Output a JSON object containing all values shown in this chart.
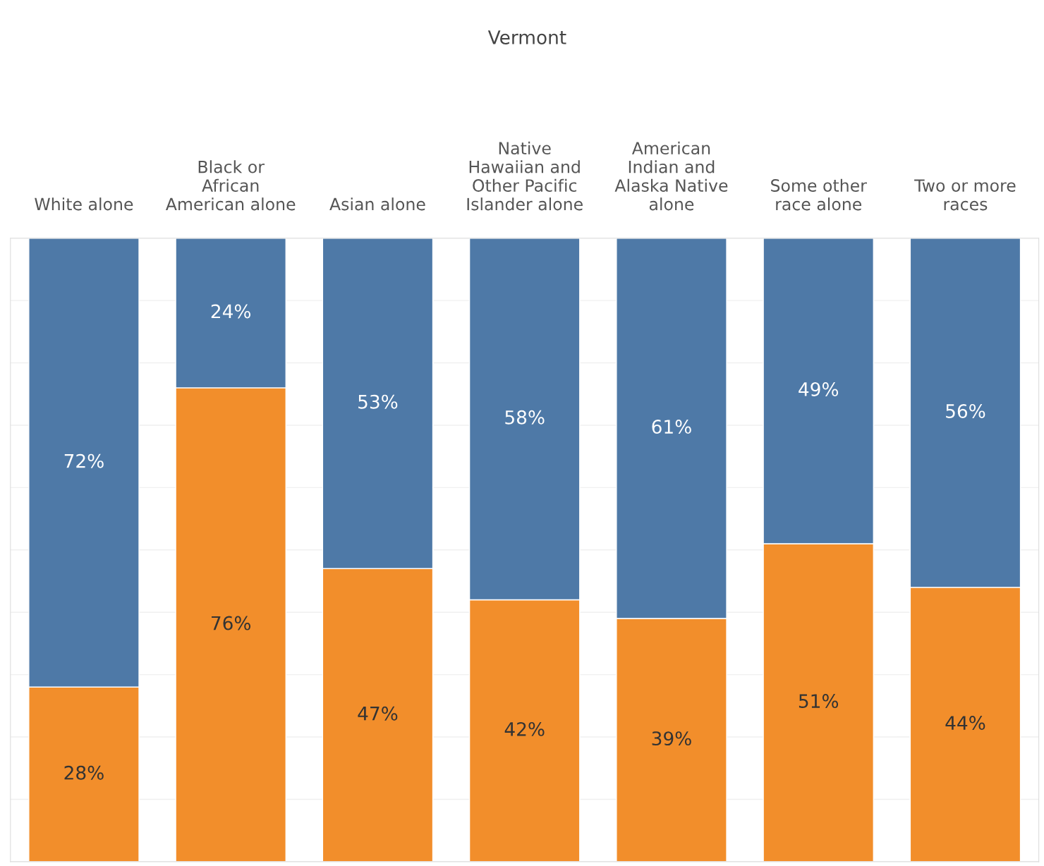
{
  "chart_data": {
    "type": "bar",
    "title": "Vermont",
    "stacked": true,
    "categories": [
      "White alone",
      "Black or African American alone",
      "Asian alone",
      "Native Hawaiian and Other Pacific Islander alone",
      "American Indian and Alaska Native alone",
      "Some other race alone",
      "Two or more races"
    ],
    "series": [
      {
        "color": "#f28e2b",
        "values": [
          28,
          76,
          47,
          42,
          39,
          51,
          44
        ],
        "value_labels": [
          "28%",
          "76%",
          "47%",
          "42%",
          "39%",
          "51%",
          "44%"
        ]
      },
      {
        "color": "#4e79a7",
        "values": [
          72,
          24,
          53,
          58,
          61,
          49,
          56
        ],
        "value_labels": [
          "72%",
          "24%",
          "53%",
          "58%",
          "61%",
          "49%",
          "56%"
        ]
      }
    ],
    "ylim": [
      0,
      100
    ],
    "yticks": [
      {
        "value": 0,
        "label": null
      },
      {
        "value": 10,
        "label": null
      },
      {
        "value": 20,
        "label": null
      },
      {
        "value": 30,
        "label": null
      },
      {
        "value": 40,
        "label": null
      },
      {
        "value": 50,
        "label": null
      },
      {
        "value": 60,
        "label": null
      },
      {
        "value": 70,
        "label": null
      },
      {
        "value": 80,
        "label": null
      },
      {
        "value": 90,
        "label": null
      },
      {
        "value": 100,
        "label": null
      }
    ],
    "grid": "y",
    "legend": false
  }
}
